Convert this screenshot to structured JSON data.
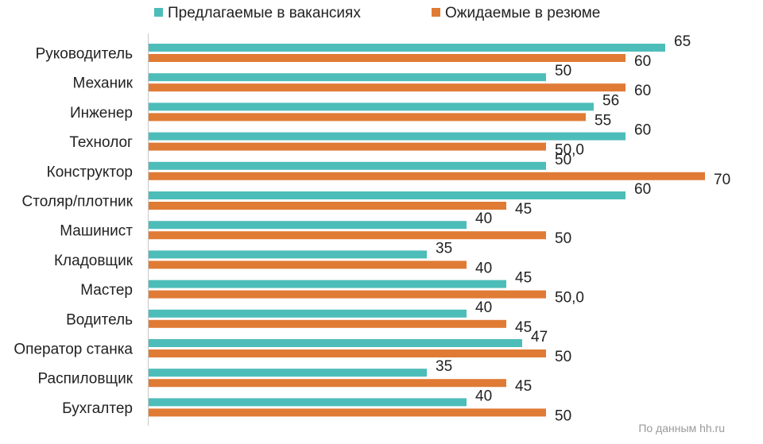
{
  "source_note": "По данным hh.ru",
  "colors": {
    "offered": "#4dbdb9",
    "expected": "#e07b35",
    "axis": "#c8c8c8"
  },
  "chart_data": {
    "type": "bar",
    "orientation": "horizontal",
    "categories": [
      "Руководитель",
      "Механик",
      "Инженер",
      "Технолог",
      "Конструктор",
      "Столяр/плотник",
      "Машинист",
      "Кладовщик",
      "Мастер",
      "Водитель",
      "Оператор станка",
      "Распиловщик",
      "Бухгалтер"
    ],
    "series": [
      {
        "name": "Предлагаемые в вакансиях",
        "values": [
          65,
          50,
          56,
          60,
          50,
          60,
          40,
          35,
          45,
          40,
          47,
          35,
          40
        ],
        "labels": [
          "65",
          "50",
          "56",
          "60",
          "50",
          "60",
          "40",
          "35",
          "45",
          "40",
          "47",
          "35",
          "40"
        ]
      },
      {
        "name": "Ожидаемые в резюме",
        "values": [
          60,
          60,
          55,
          50,
          70,
          45,
          50,
          40,
          50,
          45,
          50,
          45,
          50
        ],
        "labels": [
          "60",
          "60",
          "55",
          "50,0",
          "70",
          "45",
          "50",
          "40",
          "50,0",
          "45",
          "50",
          "45",
          "50"
        ]
      }
    ],
    "xlim": [
      0,
      70
    ],
    "legend": "top",
    "grid": false
  }
}
